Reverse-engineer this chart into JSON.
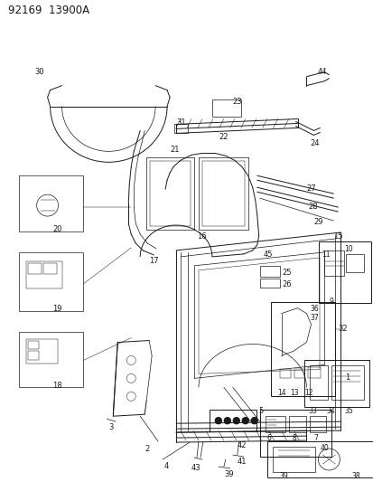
{
  "title": "92169  13900A",
  "bg_color": "#ffffff",
  "line_color": "#1a1a1a",
  "title_fontsize": 8.5,
  "label_fontsize": 6.0,
  "fig_width": 4.14,
  "fig_height": 5.33,
  "dpi": 100
}
